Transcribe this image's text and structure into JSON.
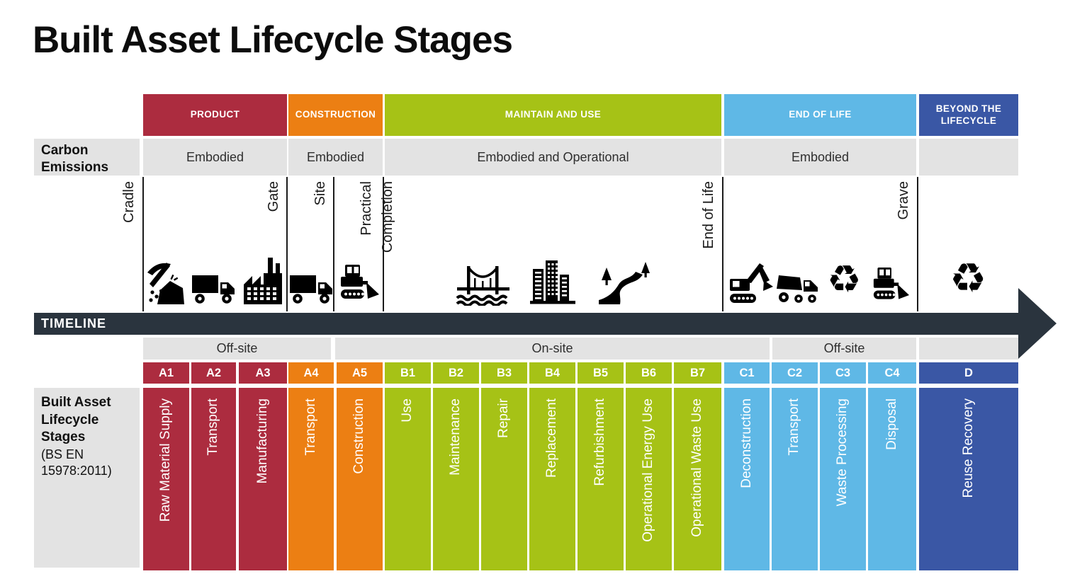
{
  "title": "Built Asset Lifecycle Stages",
  "palette": {
    "product_red": "#AC2C3F",
    "construction_orange": "#EC7F13",
    "maintain_green": "#A6C216",
    "end_of_life_blue": "#5FB8E6",
    "beyond_dark_blue": "#3A57A5",
    "timeline_charcoal": "#2A343E",
    "band_gray": "#E3E3E3"
  },
  "carbon_row": {
    "label": "Carbon Emissions"
  },
  "sections": [
    {
      "label": "PRODUCT",
      "emissions": "Embodied"
    },
    {
      "label": "CONSTRUCTION",
      "emissions": "Embodied"
    },
    {
      "label": "MAINTAIN AND USE",
      "emissions": "Embodied and Operational"
    },
    {
      "label": "END OF LIFE",
      "emissions": "Embodied"
    },
    {
      "label": "BEYOND THE LIFECYCLE",
      "emissions": ""
    }
  ],
  "milestones": [
    {
      "label": "Cradle"
    },
    {
      "label": "Gate"
    },
    {
      "label": "Site"
    },
    {
      "label": "Practical Completion"
    },
    {
      "label": "End of Life"
    },
    {
      "label": "Grave"
    }
  ],
  "timeline": {
    "label": "TIMELINE"
  },
  "site_bands": [
    {
      "label": "Off-site"
    },
    {
      "label": "On-site"
    },
    {
      "label": "Off-site"
    },
    {
      "label": ""
    }
  ],
  "stages_axis": {
    "title": "Built Asset Lifecycle Stages",
    "standard": "(BS EN 15978:2011)"
  },
  "stages": [
    {
      "code": "A1",
      "name": "Raw Material Supply"
    },
    {
      "code": "A2",
      "name": "Transport"
    },
    {
      "code": "A3",
      "name": "Manufacturing"
    },
    {
      "code": "A4",
      "name": "Transport"
    },
    {
      "code": "A5",
      "name": "Construction"
    },
    {
      "code": "B1",
      "name": "Use"
    },
    {
      "code": "B2",
      "name": "Maintenance"
    },
    {
      "code": "B3",
      "name": "Repair"
    },
    {
      "code": "B4",
      "name": "Replacement"
    },
    {
      "code": "B5",
      "name": "Refurbishment"
    },
    {
      "code": "B6",
      "name": "Operational Energy Use"
    },
    {
      "code": "B7",
      "name": "Operational Waste Use"
    },
    {
      "code": "C1",
      "name": "Deconstruction"
    },
    {
      "code": "C2",
      "name": "Transport"
    },
    {
      "code": "C3",
      "name": "Waste Processing"
    },
    {
      "code": "C4",
      "name": "Disposal"
    },
    {
      "code": "D",
      "name": "Reuse Recovery"
    }
  ],
  "icons": [
    "pickaxe",
    "truck",
    "factory",
    "truck",
    "bulldozer",
    "bridge",
    "city-buildings",
    "road-trees",
    "excavator",
    "dump-truck",
    "recycle",
    "bulldozer",
    "recycle"
  ]
}
